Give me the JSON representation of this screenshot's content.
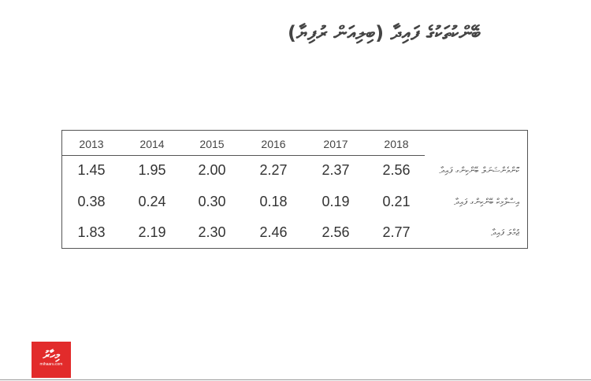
{
  "header": {
    "title": "ބޭންކުތަކުގެ ފައިދާ (ބިލިއަން ރުފިޔާ)"
  },
  "table": {
    "columns": [
      "2013",
      "2014",
      "2015",
      "2016",
      "2017",
      "2018"
    ],
    "rows": [
      {
        "label": "ކޮންވެންޝަނަލް ބޭންކިންގ ފައިދާ",
        "values": [
          "1.45",
          "1.95",
          "2.00",
          "2.27",
          "2.37",
          "2.56"
        ]
      },
      {
        "label": "އިސްލާމިކް ބޭންކިންގ ފައިދާ",
        "values": [
          "0.38",
          "0.24",
          "0.30",
          "0.18",
          "0.19",
          "0.21"
        ]
      },
      {
        "label": "ޖުމްލަ ފައިދާ",
        "values": [
          "1.83",
          "2.19",
          "2.30",
          "2.46",
          "2.56",
          "2.77"
        ]
      }
    ]
  },
  "logo": {
    "name": "މިހާރު",
    "url": "mihaaru.com"
  }
}
